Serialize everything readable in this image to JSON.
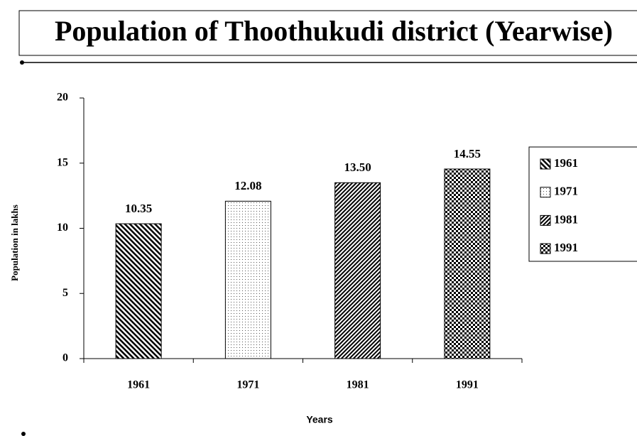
{
  "chart_data": {
    "type": "bar",
    "title": "Population of Thoothukudi district (Yearwise)",
    "x_label": "Years",
    "y_label": "Population in lakhs",
    "categories": [
      "1961",
      "1971",
      "1981",
      "1991"
    ],
    "values": [
      10.35,
      12.08,
      13.5,
      14.55
    ],
    "value_labels": [
      "10.35",
      "12.08",
      "13.50",
      "14.55"
    ],
    "ylim": [
      0,
      20
    ],
    "yticks": [
      0,
      5,
      10,
      15,
      20
    ],
    "legend": "right"
  }
}
